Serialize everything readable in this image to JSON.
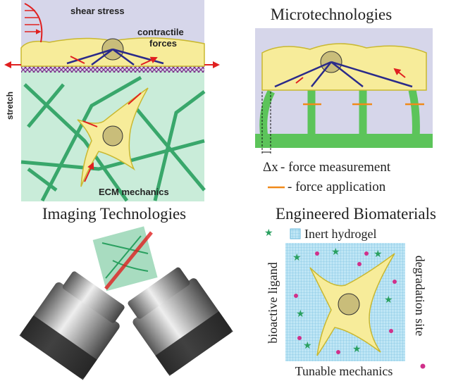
{
  "panels": {
    "mechanics": {
      "labels": [
        "shear stress",
        "contractile",
        "forces",
        "stretch",
        "ECM mechanics"
      ]
    },
    "microtechnologies": {
      "title": "Microtechnologies",
      "labels": [
        "Δx",
        "- force measurement",
        "- force application"
      ]
    },
    "imaging": {
      "title": "Imaging Technologies"
    },
    "biomaterials": {
      "title": "Engineered Biomaterials",
      "labels": [
        "Inert hydrogel",
        "bioactive ligand",
        "degradation site",
        "Tunable mechanics"
      ]
    }
  }
}
